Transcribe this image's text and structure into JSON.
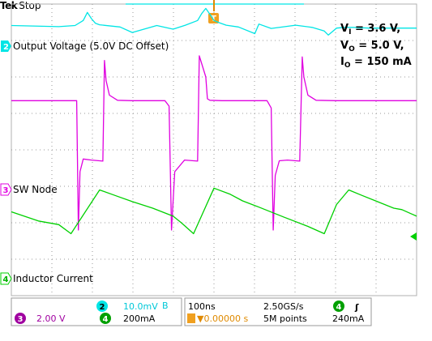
{
  "header": {
    "brand": "Tek",
    "state": "Stop"
  },
  "conditions": [
    "V",
    "I",
    " = 3.6 V,",
    "V",
    "O",
    " = 5.0 V,",
    "I",
    "O",
    " = 150 mA"
  ],
  "channels": {
    "ch2": {
      "num": "2",
      "label": "Output Voltage (5.0V DC Offset)",
      "color": "#00e5e5"
    },
    "ch3": {
      "num": "3",
      "label": "SW Node",
      "color": "#e000e0"
    },
    "ch4": {
      "num": "4",
      "label": "Inductor Current",
      "color": "#00d000"
    }
  },
  "trigger_marker": "T",
  "status": {
    "ch3_num": "3",
    "ch3_scale": "2.00 V",
    "ch2_num": "2",
    "ch2_scale": "10.0mV",
    "ch2_bw": "B",
    "ch4_num": "4",
    "ch4_scale": "200mA",
    "timebase": "100ns",
    "sample_rate": "2.50GS/s",
    "trig_pos": "▼0.00000 s",
    "record": "5M points",
    "trig_ch": "4",
    "trig_level": "240mA",
    "trig_slope": "ʃ"
  },
  "chart_data": {
    "type": "line",
    "x_unit": "ns",
    "xlim": [
      -496,
      496
    ],
    "ylim": [
      -4,
      4
    ],
    "grid": true,
    "divisions": {
      "x": 10,
      "y": 8
    },
    "series": [
      {
        "name": "Output Voltage (5.0V DC Offset)",
        "channel": 2,
        "x": [
          -496,
          -380,
          -340,
          -320,
          -310,
          -300,
          -290,
          -280,
          -230,
          -200,
          -140,
          -100,
          -70,
          -40,
          -30,
          -20,
          -10,
          0,
          10,
          30,
          60,
          100,
          110,
          140,
          200,
          240,
          270,
          280,
          300,
          320,
          340,
          380,
          420,
          460,
          496
        ],
        "y": [
          3.41,
          3.38,
          3.41,
          3.55,
          3.77,
          3.6,
          3.47,
          3.43,
          3.37,
          3.22,
          3.41,
          3.31,
          3.42,
          3.55,
          3.74,
          3.88,
          3.72,
          3.55,
          3.5,
          3.42,
          3.37,
          3.19,
          3.45,
          3.33,
          3.42,
          3.36,
          3.26,
          3.15,
          3.34,
          3.36,
          3.36,
          3.34,
          3.34,
          3.34,
          3.34
        ]
      },
      {
        "name": "SW Node",
        "channel": 3,
        "x": [
          -496,
          -340,
          -336,
          -332,
          -328,
          -320,
          -300,
          -272,
          -268,
          -264,
          -256,
          -236,
          -200,
          -120,
          -110,
          -104,
          -96,
          -72,
          -40,
          -36,
          -20,
          -16,
          -10,
          20,
          36,
          130,
          140,
          145,
          150,
          160,
          180,
          210,
          216,
          220,
          230,
          250,
          300,
          330,
          360,
          496
        ],
        "y": [
          1.35,
          1.35,
          1.35,
          -2.2,
          -0.6,
          -0.25,
          -0.28,
          -0.31,
          2.45,
          1.9,
          1.5,
          1.36,
          1.35,
          1.35,
          1.2,
          -2.2,
          -0.6,
          -0.28,
          -0.31,
          2.58,
          2.0,
          1.4,
          1.36,
          1.35,
          1.35,
          1.35,
          1.15,
          -2.2,
          -0.7,
          -0.3,
          -0.28,
          -0.31,
          2.55,
          2.0,
          1.5,
          1.36,
          1.35,
          1.35,
          1.35,
          1.35
        ]
      },
      {
        "name": "Inductor Current",
        "channel": 4,
        "x": [
          -496,
          -430,
          -380,
          -350,
          -280,
          -240,
          -200,
          -150,
          -100,
          -80,
          -50,
          0,
          40,
          70,
          110,
          170,
          230,
          270,
          300,
          330,
          360,
          400,
          440,
          460,
          496
        ],
        "y": [
          -1.7,
          -1.95,
          -2.05,
          -2.3,
          -1.1,
          -1.26,
          -1.42,
          -1.6,
          -1.82,
          -2.0,
          -2.3,
          -1.05,
          -1.22,
          -1.4,
          -1.57,
          -1.84,
          -2.1,
          -2.3,
          -1.5,
          -1.1,
          -1.24,
          -1.42,
          -1.6,
          -1.64,
          -1.82
        ]
      }
    ]
  }
}
